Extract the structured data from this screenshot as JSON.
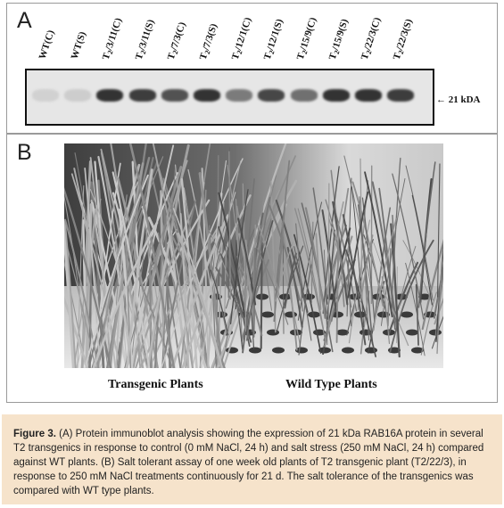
{
  "panel_a": {
    "letter": "A",
    "lanes": [
      {
        "prefix": "",
        "sub": "",
        "suffix": "WT(C)",
        "intensity": 0.08
      },
      {
        "prefix": "",
        "sub": "",
        "suffix": "WT(S)",
        "intensity": 0.1
      },
      {
        "prefix": "T",
        "sub": "2",
        "suffix": "/3/11(C)",
        "intensity": 0.85
      },
      {
        "prefix": "T",
        "sub": "2",
        "suffix": "/3/11(S)",
        "intensity": 0.8
      },
      {
        "prefix": "T",
        "sub": "2",
        "suffix": "/7/3(C)",
        "intensity": 0.7
      },
      {
        "prefix": "T",
        "sub": "2",
        "suffix": "/7/3(S)",
        "intensity": 0.85
      },
      {
        "prefix": "T",
        "sub": "2",
        "suffix": "/12/1(C)",
        "intensity": 0.5
      },
      {
        "prefix": "T",
        "sub": "2",
        "suffix": "/12/1(S)",
        "intensity": 0.75
      },
      {
        "prefix": "T",
        "sub": "2",
        "suffix": "/15/9(C)",
        "intensity": 0.55
      },
      {
        "prefix": "T",
        "sub": "2",
        "suffix": "/15/9(S)",
        "intensity": 0.85
      },
      {
        "prefix": "T",
        "sub": "2",
        "suffix": "/22/3(C)",
        "intensity": 0.85
      },
      {
        "prefix": "T",
        "sub": "2",
        "suffix": "/22/3(S)",
        "intensity": 0.8
      }
    ],
    "marker_label": "← 21 kDA"
  },
  "panel_b": {
    "letter": "B",
    "left_caption": "Transgenic Plants",
    "right_caption": "Wild Type Plants"
  },
  "caption": {
    "label": "Figure 3.",
    "text": " (A) Protein immunoblot analysis showing the expression of 21 kDa RAB16A protein in several T2 transgenics in response to control (0 mM NaCl, 24 h) and salt stress (250 mM NaCl, 24 h) compared against WT plants. (B) Salt tolerant assay of one week old plants of T2 transgenic plant (T2/22/3), in response to 250 mM NaCl treatments continuously for 21 d. The salt tolerance of the transgenics was compared with WT type plants.",
    "background": "#f6e3cb"
  }
}
